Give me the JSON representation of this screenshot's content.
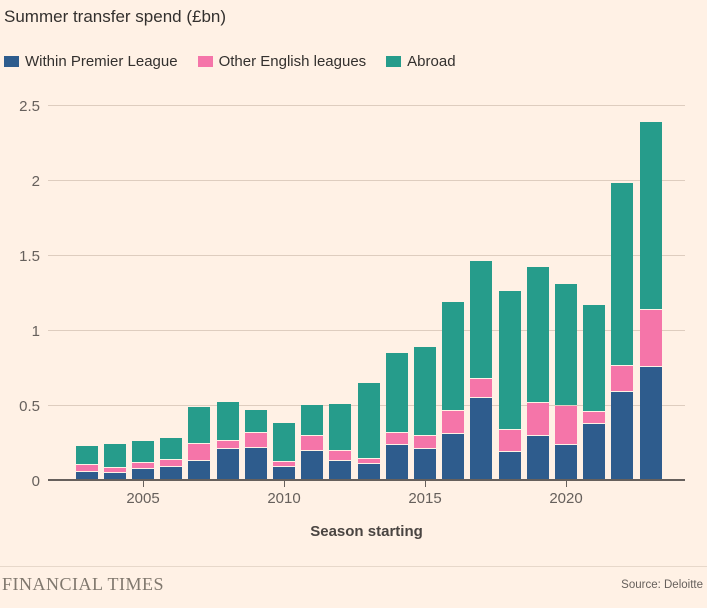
{
  "title": "Summer transfer spend (£bn)",
  "legend": [
    {
      "label": "Within Premier League",
      "color": "#2E5C8D"
    },
    {
      "label": "Other English leagues",
      "color": "#F575A9"
    },
    {
      "label": "Abroad",
      "color": "#269C8B"
    }
  ],
  "x_axis_title": "Season starting",
  "footer": {
    "brand": "FINANCIAL TIMES",
    "source": "Source: Deloitte"
  },
  "colors": {
    "background": "#FFF1E5",
    "gridline": "#DECDBF",
    "axis": "#66605C",
    "text": "#33302E",
    "tick_text": "#66605C"
  },
  "chart_data": {
    "type": "bar",
    "stacked": true,
    "title": "Summer transfer spend (£bn)",
    "xlabel": "Season starting",
    "ylabel": "£bn",
    "ylim": [
      0,
      2.5
    ],
    "yticks": [
      0,
      0.5,
      1,
      1.5,
      2,
      2.5
    ],
    "ytick_labels": [
      "0",
      "0.5",
      "1",
      "1.5",
      "2",
      "2.5"
    ],
    "labeled_x_ticks": [
      2005,
      2010,
      2015,
      2020
    ],
    "grid": "horizontal",
    "legend_position": "top",
    "categories": [
      2003,
      2004,
      2005,
      2006,
      2007,
      2008,
      2009,
      2010,
      2011,
      2012,
      2013,
      2014,
      2015,
      2016,
      2017,
      2018,
      2019,
      2020,
      2021,
      2022,
      2023
    ],
    "series": [
      {
        "name": "Within Premier League",
        "color": "#2E5C8D",
        "values": [
          0.05,
          0.04,
          0.07,
          0.08,
          0.12,
          0.2,
          0.21,
          0.08,
          0.19,
          0.12,
          0.1,
          0.23,
          0.2,
          0.3,
          0.54,
          0.18,
          0.29,
          0.23,
          0.37,
          0.58,
          0.75
        ]
      },
      {
        "name": "Other English leagues",
        "color": "#F575A9",
        "values": [
          0.04,
          0.03,
          0.03,
          0.04,
          0.11,
          0.05,
          0.09,
          0.03,
          0.09,
          0.06,
          0.03,
          0.07,
          0.08,
          0.15,
          0.12,
          0.14,
          0.21,
          0.25,
          0.07,
          0.17,
          0.37
        ]
      },
      {
        "name": "Abroad",
        "color": "#269C8B",
        "values": [
          0.12,
          0.15,
          0.14,
          0.14,
          0.24,
          0.25,
          0.15,
          0.25,
          0.2,
          0.31,
          0.5,
          0.53,
          0.59,
          0.72,
          0.78,
          0.92,
          0.9,
          0.81,
          0.71,
          1.21,
          1.25
        ]
      }
    ],
    "totals": [
      0.21,
      0.22,
      0.24,
      0.26,
      0.47,
      0.5,
      0.45,
      0.36,
      0.48,
      0.49,
      0.63,
      0.83,
      0.87,
      1.17,
      1.44,
      1.24,
      1.4,
      1.29,
      1.15,
      1.96,
      2.37
    ]
  }
}
